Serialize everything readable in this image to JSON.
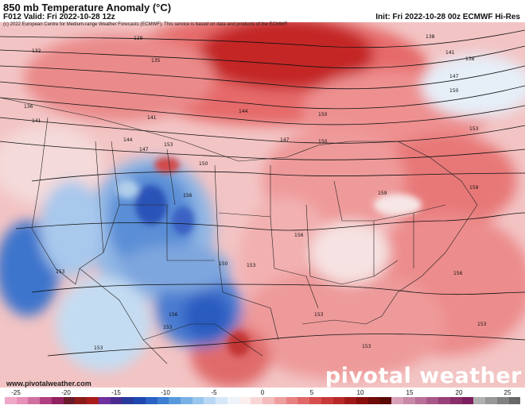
{
  "header": {
    "title": "850 mb Temperature Anomaly (°C)",
    "valid": "F012 Valid: Fri 2022-10-28 12z",
    "init": "Init: Fri 2022-10-28 00z ECMWF Hi-Res",
    "copyright": "(c) 2022 European Centre for Medium-range Weather Forecasts (ECMWF). This service is based on data and products of the ECMWF."
  },
  "watermark": "pivotal weather",
  "footer_url": "www.pivotalweather.com",
  "colorbar": {
    "ticks": [
      "-25",
      "-20",
      "-15",
      "-10",
      "-5",
      "0",
      "5",
      "10",
      "15",
      "20",
      "25"
    ],
    "colors": [
      "#f0a8c8",
      "#e890b8",
      "#d070a0",
      "#b04080",
      "#902060",
      "#6a1a2a",
      "#8c1a1a",
      "#a81c1c",
      "#7030a0",
      "#4a2c90",
      "#2a3a9c",
      "#1e48b0",
      "#2a62c4",
      "#3c7ed2",
      "#5898dc",
      "#78b0e6",
      "#98c6ee",
      "#b8d8f4",
      "#d6e8f8",
      "#eef4fb",
      "#fbeeee",
      "#f8d6d6",
      "#f4bcbc",
      "#ee9e9e",
      "#e88282",
      "#e06868",
      "#d64e4e",
      "#c83a3a",
      "#b82828",
      "#a01818",
      "#880e0e",
      "#6e0a0a",
      "#5a0808",
      "#d8a0b8",
      "#c888a8",
      "#b87098",
      "#a85888",
      "#984078",
      "#8a2e6a",
      "#7c1e5e",
      "#b0b0b0",
      "#989898",
      "#808080",
      "#686868"
    ]
  },
  "height_contours": [
    "129",
    "132",
    "135",
    "136",
    "138",
    "141",
    "144",
    "147",
    "150",
    "153",
    "156",
    "159"
  ],
  "contour_labels": [
    {
      "t": "129"
    },
    {
      "t": "132"
    },
    {
      "t": "135"
    },
    {
      "t": "136"
    },
    {
      "t": "138"
    },
    {
      "t": "141"
    },
    {
      "t": "144"
    },
    {
      "t": "147"
    },
    {
      "t": "150"
    },
    {
      "t": "153"
    },
    {
      "t": "156"
    },
    {
      "t": "159"
    },
    {
      "t": "141"
    },
    {
      "t": "147"
    },
    {
      "t": "150"
    },
    {
      "t": "153"
    },
    {
      "t": "156"
    },
    {
      "t": "153"
    },
    {
      "t": "150"
    },
    {
      "t": "153"
    },
    {
      "t": "156"
    },
    {
      "t": "153"
    },
    {
      "t": "138"
    },
    {
      "t": "141"
    },
    {
      "t": "144"
    },
    {
      "t": "147"
    },
    {
      "t": "150"
    },
    {
      "t": "153"
    },
    {
      "t": "156"
    },
    {
      "t": "159"
    },
    {
      "t": "153"
    },
    {
      "t": "153"
    },
    {
      "t": "150"
    },
    {
      "t": "153"
    }
  ]
}
